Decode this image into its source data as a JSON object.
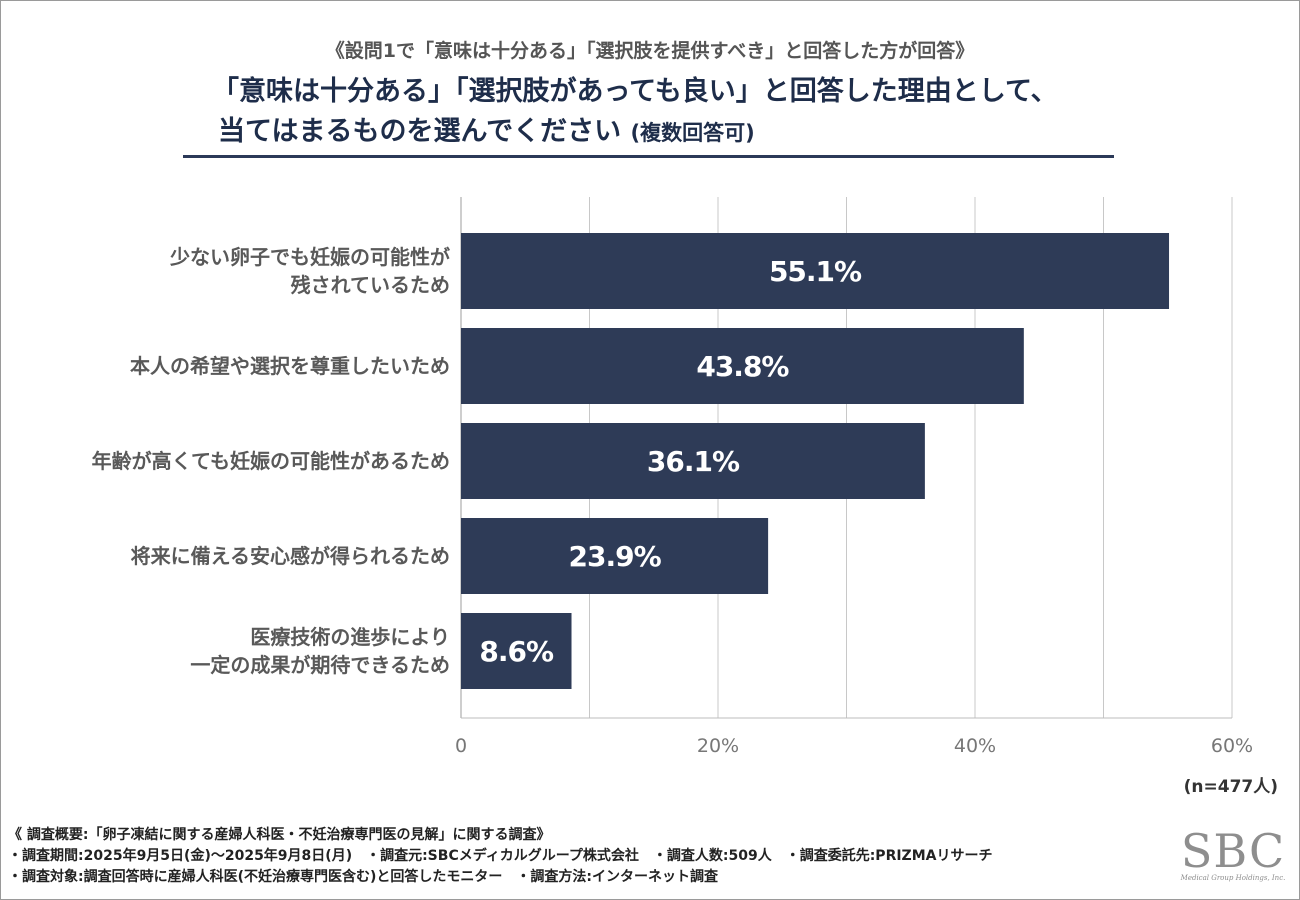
{
  "header": {
    "subtitle": "《設問1で「意味は十分ある」「選択肢を提供すべき」と回答した方が回答》",
    "title_line1": "「意味は十分ある」「選択肢があっても良い」と回答した理由として、",
    "title_line2": "当てはまるものを選んでください",
    "title_note": "(複数回答可)"
  },
  "colors": {
    "bar": "#2e3b57",
    "grid": "#c8c8c8",
    "title": "#1e2d4a"
  },
  "chart_data": {
    "type": "bar",
    "orientation": "horizontal",
    "title": "「意味は十分ある」「選択肢があっても良い」と回答した理由として、当てはまるものを選んでください (複数回答可)",
    "categories": [
      [
        "少ない卵子でも妊娠の可能性が",
        "残されているため"
      ],
      [
        "本人の希望や選択を尊重したいため"
      ],
      [
        "年齢が高くても妊娠の可能性があるため"
      ],
      [
        "将来に備える安心感が得られるため"
      ],
      [
        "医療技術の進歩により",
        "一定の成果が期待できるため"
      ]
    ],
    "values": [
      55.1,
      43.8,
      36.1,
      23.9,
      8.6
    ],
    "value_labels": [
      "55.1%",
      "43.8%",
      "36.1%",
      "23.9%",
      "8.6%"
    ],
    "xlim": [
      0,
      60
    ],
    "xticks": [
      0,
      10,
      20,
      30,
      40,
      50,
      60
    ],
    "xtick_labels": [
      "0",
      "",
      "20%",
      "",
      "40%",
      "",
      "60%"
    ],
    "grid": true,
    "xlabel": "",
    "ylabel": ""
  },
  "sample_size": "(n=477人)",
  "footer": {
    "line1": "《 調査概要:「卵子凍結に関する産婦人科医・不妊治療専門医の見解」に関する調査》",
    "line2": "・調査期間:2025年9月5日(金)〜2025年9月8日(月)　・調査元:SBCメディカルグループ株式会社　・調査人数:509人　・調査委託先:PRIZMAリサーチ",
    "line3": "・調査対象:調査回答時に産婦人科医(不妊治療専門医含む)と回答したモニター　・調査方法:インターネット調査"
  },
  "logo": {
    "mark": "SBC",
    "sub": "Medical Group Holdings, Inc."
  }
}
